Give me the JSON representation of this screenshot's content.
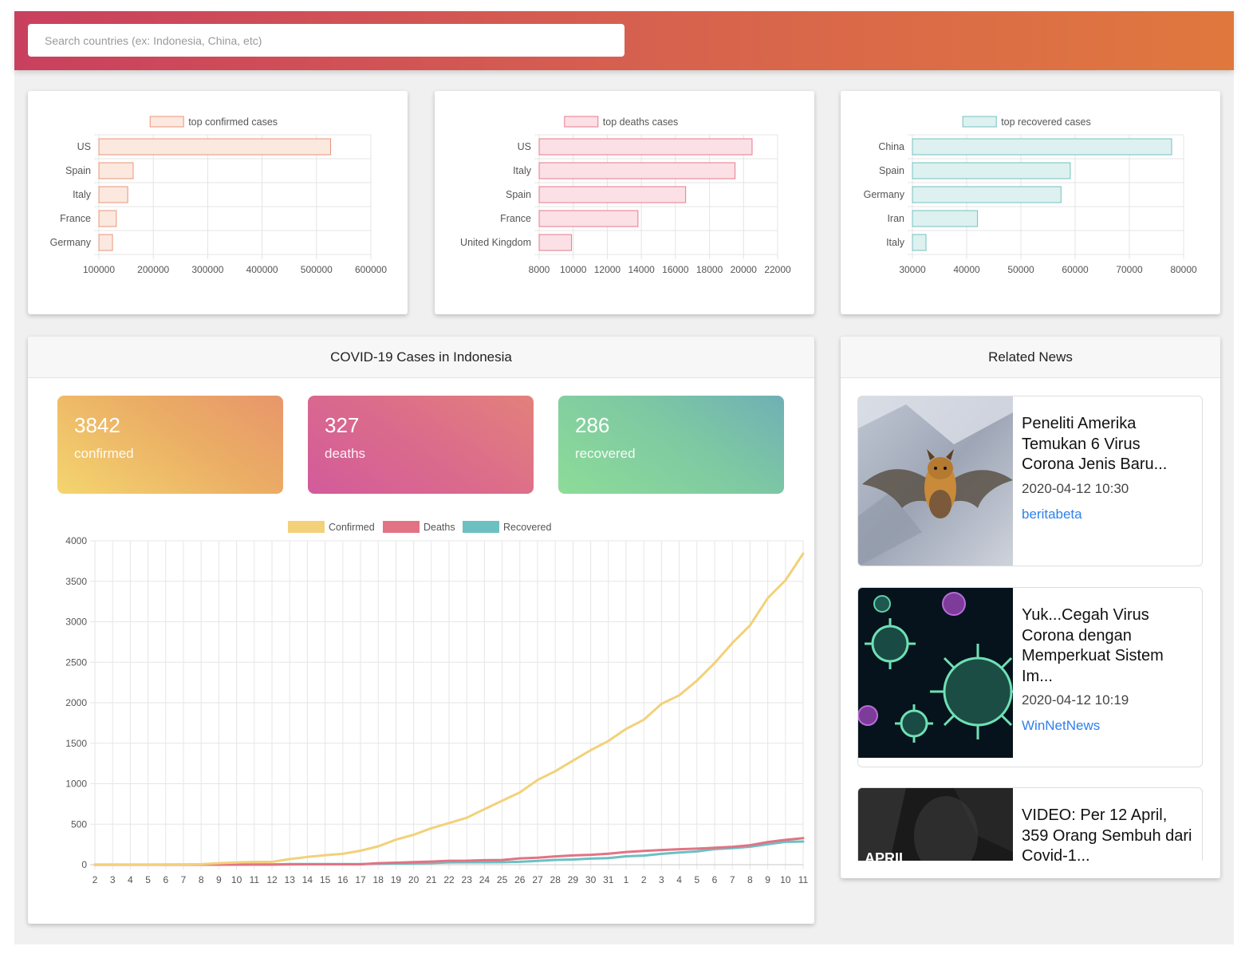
{
  "search": {
    "placeholder": "Search countries (ex: Indonesia, China, etc)"
  },
  "top_charts": [
    {
      "type": "bar",
      "legend": "top confirmed cases",
      "categories": [
        "US",
        "Spain",
        "Italy",
        "France",
        "Germany"
      ],
      "values": [
        526000,
        163000,
        153000,
        132000,
        125000
      ],
      "xlim": [
        100000,
        600000
      ],
      "ticks": [
        "100000",
        "200000",
        "300000",
        "400000",
        "500000",
        "600000"
      ],
      "fill": "#fbe8df",
      "stroke": "#e8967a"
    },
    {
      "type": "bar",
      "legend": "top deaths cases",
      "categories": [
        "US",
        "Italy",
        "Spain",
        "France",
        "United Kingdom"
      ],
      "values": [
        20500,
        19500,
        16600,
        13800,
        9900
      ],
      "xlim": [
        8000,
        22000
      ],
      "ticks": [
        "8000",
        "10000",
        "12000",
        "14000",
        "16000",
        "18000",
        "20000",
        "22000"
      ],
      "fill": "#fbe0e5",
      "stroke": "#e77a8d"
    },
    {
      "type": "bar",
      "legend": "top recovered cases",
      "categories": [
        "China",
        "Spain",
        "Germany",
        "Iran",
        "Italy"
      ],
      "values": [
        77800,
        59100,
        57400,
        42000,
        32500
      ],
      "xlim": [
        30000,
        80000
      ],
      "ticks": [
        "30000",
        "40000",
        "50000",
        "60000",
        "70000",
        "80000"
      ],
      "fill": "#ddf1f0",
      "stroke": "#73c1bf"
    }
  ],
  "indonesia": {
    "title": "COVID-19 Cases in Indonesia",
    "stats": {
      "confirmed": {
        "value": "3842",
        "label": "confirmed"
      },
      "deaths": {
        "value": "327",
        "label": "deaths"
      },
      "recovered": {
        "value": "286",
        "label": "recovered"
      }
    }
  },
  "chart_data": {
    "type": "line",
    "x": [
      "2",
      "3",
      "4",
      "5",
      "6",
      "7",
      "8",
      "9",
      "10",
      "11",
      "12",
      "13",
      "14",
      "15",
      "16",
      "17",
      "18",
      "19",
      "20",
      "21",
      "22",
      "23",
      "24",
      "25",
      "26",
      "27",
      "28",
      "29",
      "30",
      "31",
      "1",
      "2",
      "3",
      "4",
      "5",
      "6",
      "7",
      "8",
      "9",
      "10",
      "11"
    ],
    "series": [
      {
        "name": "Confirmed",
        "color": "#f2d17a",
        "values": [
          2,
          2,
          2,
          2,
          4,
          4,
          6,
          19,
          27,
          34,
          34,
          69,
          96,
          117,
          134,
          172,
          227,
          309,
          369,
          450,
          514,
          579,
          686,
          790,
          893,
          1046,
          1155,
          1285,
          1414,
          1528,
          1677,
          1790,
          1986,
          2092,
          2273,
          2491,
          2738,
          2956,
          3293,
          3512,
          3842
        ]
      },
      {
        "name": "Deaths",
        "color": "#e27385",
        "values": [
          0,
          0,
          0,
          0,
          0,
          0,
          0,
          0,
          0,
          1,
          1,
          4,
          5,
          5,
          5,
          5,
          19,
          25,
          32,
          38,
          48,
          49,
          55,
          58,
          78,
          87,
          102,
          114,
          122,
          136,
          157,
          170,
          181,
          191,
          198,
          209,
          221,
          240,
          280,
          306,
          327
        ]
      },
      {
        "name": "Recovered",
        "color": "#6cc0c2",
        "values": [
          0,
          0,
          0,
          0,
          0,
          0,
          0,
          2,
          2,
          2,
          2,
          8,
          8,
          8,
          8,
          8,
          11,
          15,
          16,
          20,
          29,
          30,
          30,
          31,
          35,
          46,
          59,
          64,
          75,
          81,
          103,
          112,
          134,
          150,
          164,
          192,
          204,
          222,
          252,
          282,
          286
        ]
      }
    ],
    "ylim": [
      0,
      4000
    ],
    "yticks": [
      "0",
      "500",
      "1000",
      "1500",
      "2000",
      "2500",
      "3000",
      "3500",
      "4000"
    ],
    "legend_position": "top"
  },
  "news": {
    "title": "Related News",
    "items": [
      {
        "title": "Peneliti Amerika Temukan 6 Virus Corona Jenis Baru...",
        "date": "2020-04-12 10:30",
        "source": "beritabeta",
        "thumb": "bat-photo"
      },
      {
        "title": "Yuk...Cegah Virus Corona dengan Memperkuat Sistem Im...",
        "date": "2020-04-12 10:19",
        "source": "WinNetNews",
        "thumb": "virus-illustration"
      },
      {
        "title": "VIDEO: Per 12 April, 359 Orang Sembuh dari Covid-1...",
        "thumb": "video-still",
        "thumb_text": "APRIL"
      }
    ]
  }
}
